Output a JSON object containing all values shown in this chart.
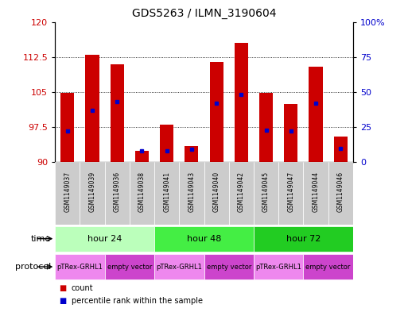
{
  "title": "GDS5263 / ILMN_3190604",
  "samples": [
    "GSM1149037",
    "GSM1149039",
    "GSM1149036",
    "GSM1149038",
    "GSM1149041",
    "GSM1149043",
    "GSM1149040",
    "GSM1149042",
    "GSM1149045",
    "GSM1149047",
    "GSM1149044",
    "GSM1149046"
  ],
  "red_values": [
    104.8,
    113.0,
    111.0,
    92.5,
    98.0,
    93.5,
    111.5,
    115.5,
    104.8,
    102.5,
    110.5,
    95.5
  ],
  "blue_values": [
    22,
    37,
    43,
    8,
    8,
    9,
    42,
    48,
    23,
    22,
    42,
    10
  ],
  "ylim_left": [
    90,
    120
  ],
  "ylim_right": [
    0,
    100
  ],
  "yticks_left": [
    90,
    97.5,
    105,
    112.5,
    120
  ],
  "yticks_right": [
    0,
    25,
    50,
    75,
    100
  ],
  "time_groups": [
    {
      "label": "hour 24",
      "start": 0,
      "end": 4,
      "color": "#bbffbb"
    },
    {
      "label": "hour 48",
      "start": 4,
      "end": 8,
      "color": "#44ee44"
    },
    {
      "label": "hour 72",
      "start": 8,
      "end": 12,
      "color": "#22cc22"
    }
  ],
  "protocol_groups": [
    {
      "label": "pTRex-GRHL1",
      "start": 0,
      "end": 2,
      "color": "#ee88ee"
    },
    {
      "label": "empty vector",
      "start": 2,
      "end": 4,
      "color": "#cc44cc"
    },
    {
      "label": "pTRex-GRHL1",
      "start": 4,
      "end": 6,
      "color": "#ee88ee"
    },
    {
      "label": "empty vector",
      "start": 6,
      "end": 8,
      "color": "#cc44cc"
    },
    {
      "label": "pTRex-GRHL1",
      "start": 8,
      "end": 10,
      "color": "#ee88ee"
    },
    {
      "label": "empty vector",
      "start": 10,
      "end": 12,
      "color": "#cc44cc"
    }
  ],
  "bar_color": "#cc0000",
  "dot_color": "#0000cc",
  "bar_width": 0.55,
  "background_color": "#ffffff",
  "label_color_left": "#cc0000",
  "label_color_right": "#0000cc",
  "sample_bg_color": "#cccccc",
  "time_label": "time",
  "protocol_label": "protocol",
  "legend_items": [
    {
      "label": "count",
      "color": "#cc0000"
    },
    {
      "label": "percentile rank within the sample",
      "color": "#0000cc"
    }
  ]
}
